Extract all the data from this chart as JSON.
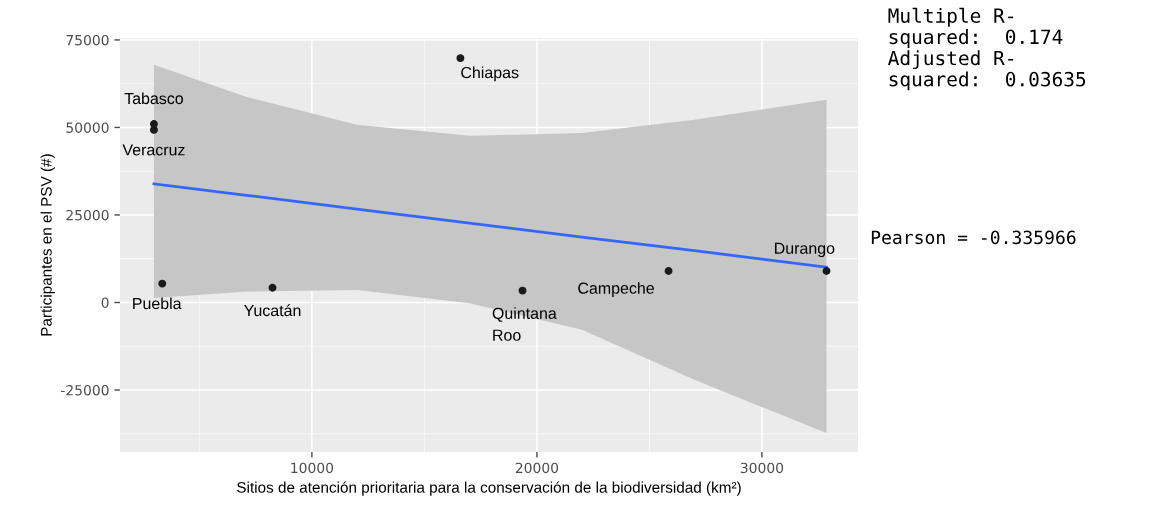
{
  "chart_data": {
    "type": "scatter",
    "xlabel": "Sitios de atención prioritaria para la conservación de la biodiversidad (km²)",
    "ylabel": "Participantes en el PSV (#)",
    "xlim": [
      1470,
      34270
    ],
    "xticks": [
      10000,
      20000,
      30000
    ],
    "ylim": [
      -42700,
      75500
    ],
    "yticks": [
      -25000,
      0,
      25000,
      50000,
      75000
    ],
    "grid": true,
    "series": [
      {
        "color": "#1a1a1a",
        "x": [
          2980,
          2980,
          3350,
          8250,
          16600,
          19360,
          25850,
          32870
        ],
        "values": [
          51000,
          49300,
          5400,
          4200,
          69800,
          3400,
          9000,
          9000
        ]
      },
      {
        "type": "line",
        "color": "#3366ff",
        "x": [
          2980,
          7000,
          12000,
          17000,
          22000,
          27000,
          32870
        ],
        "values": [
          33900,
          30700,
          26700,
          22700,
          18700,
          14800,
          10100
        ],
        "lower": [
          1300,
          3100,
          3600,
          -200,
          -7800,
          -22100,
          -37300
        ],
        "upper": [
          67900,
          58900,
          50800,
          47600,
          48400,
          52200,
          57900
        ]
      }
    ],
    "annotations": [
      {
        "text": "Tabasco",
        "x": 2980,
        "y": 51000
      },
      {
        "text": "Veracruz",
        "x": 2980,
        "y": 49300
      },
      {
        "text": "Puebla",
        "x": 3350,
        "y": 5400
      },
      {
        "text": "Yucatán",
        "x": 8250,
        "y": 4200
      },
      {
        "text": "Chiapas",
        "x": 16600,
        "y": 69800
      },
      {
        "text": "Quintana\nRoo",
        "x": 19360,
        "y": 3400
      },
      {
        "text": "Campeche",
        "x": 25850,
        "y": 9000
      },
      {
        "text": "Durango",
        "x": 32870,
        "y": 9000
      },
      "Multiple R-\nsquared:  0.174\nAdjusted R-\nsquared:  0.03635",
      "Pearson = -0.335966"
    ]
  }
}
